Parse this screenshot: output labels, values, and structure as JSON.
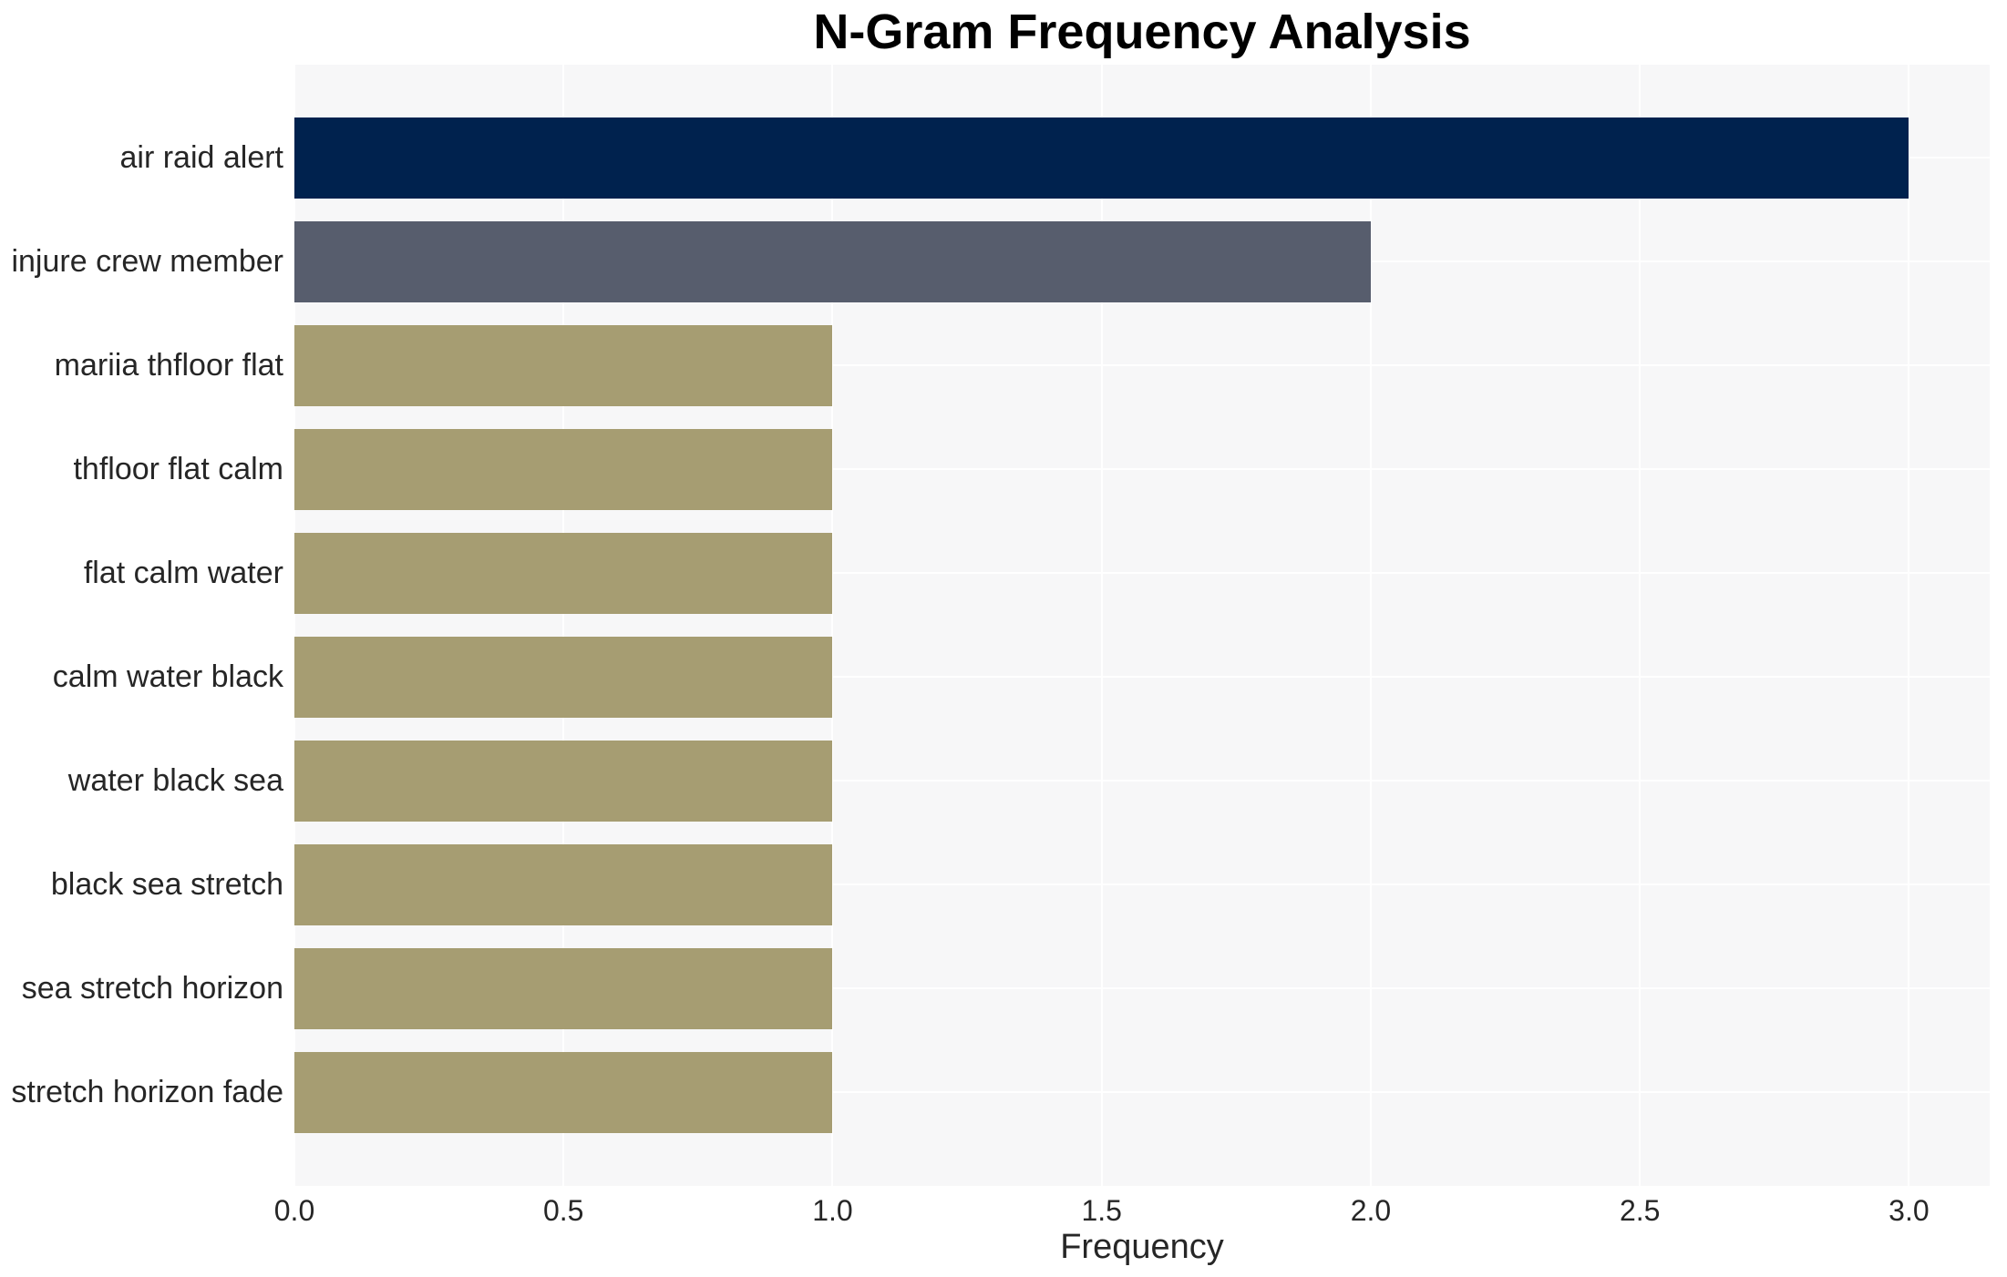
{
  "chart_data": {
    "type": "bar",
    "orientation": "horizontal",
    "title": "N-Gram Frequency Analysis",
    "xlabel": "Frequency",
    "ylabel": "",
    "categories": [
      "air raid alert",
      "injure crew member",
      "mariia thfloor flat",
      "thfloor flat calm",
      "flat calm water",
      "calm water black",
      "water black sea",
      "black sea stretch",
      "sea stretch horizon",
      "stretch horizon fade"
    ],
    "values": [
      3,
      2,
      1,
      1,
      1,
      1,
      1,
      1,
      1,
      1
    ],
    "bar_colors": [
      "#00224e",
      "#575d6d",
      "#a69d72",
      "#a69d72",
      "#a69d72",
      "#a69d72",
      "#a69d72",
      "#a69d72",
      "#a69d72",
      "#a69d72"
    ],
    "xtick_labels": [
      "0.0",
      "0.5",
      "1.0",
      "1.5",
      "2.0",
      "2.5",
      "3.0"
    ],
    "xtick_values": [
      0,
      0.5,
      1,
      1.5,
      2,
      2.5,
      3
    ],
    "xlim": [
      0,
      3.15
    ],
    "grid": true,
    "legend": false,
    "colors": {
      "plot_background": "#f7f7f8",
      "gridline": "#ffffff",
      "title_text": "#000000",
      "tick_text": "#262626",
      "page_background": "#ffffff"
    }
  }
}
